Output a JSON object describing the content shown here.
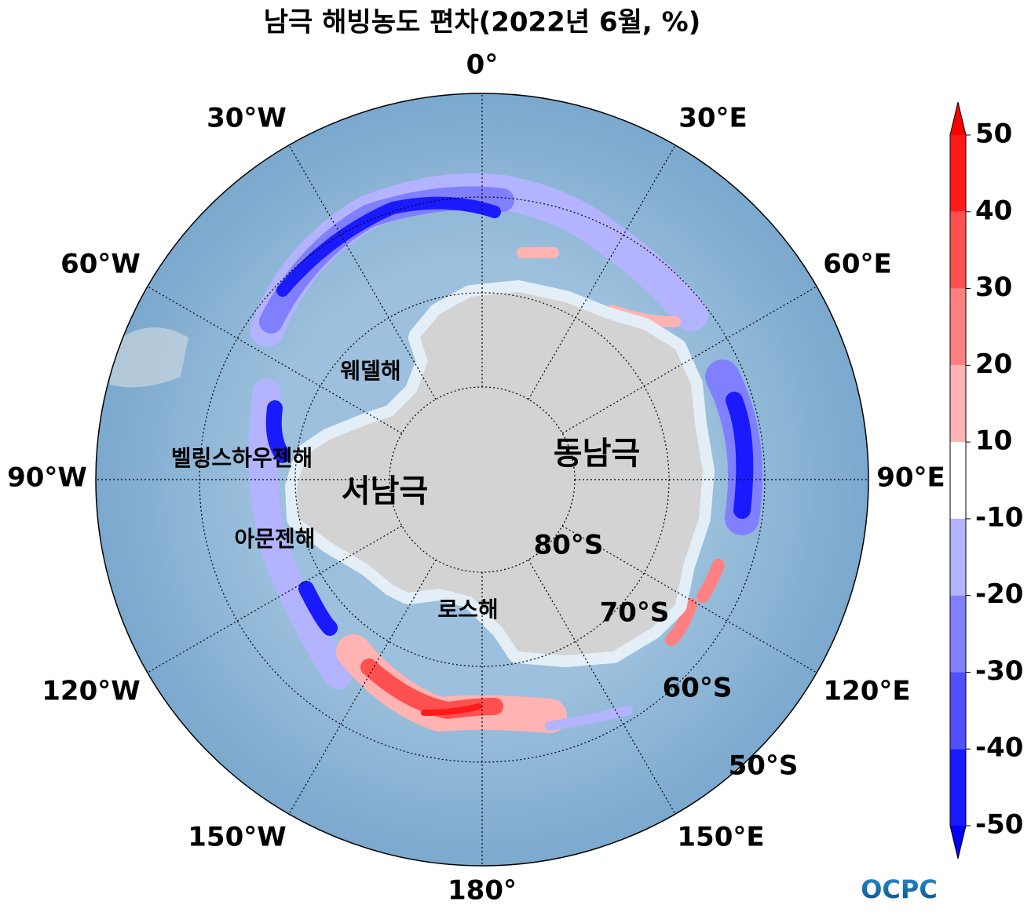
{
  "title": "남극 해빙농도 편차(2022년 6월, %)",
  "map": {
    "projection": "south-polar-stereographic",
    "grid": true,
    "longitude_labels": [
      "0°",
      "30°E",
      "60°E",
      "90°E",
      "120°E",
      "150°E",
      "180°",
      "150°W",
      "120°W",
      "90°W",
      "60°W",
      "30°W"
    ],
    "latitude_labels": [
      "80°S",
      "70°S",
      "60°S",
      "50°S"
    ],
    "seas": [
      "웨델해",
      "벨링스하우젠해",
      "아문젠해",
      "로스해"
    ],
    "regions": [
      "서남극",
      "동남극"
    ]
  },
  "colorbar": {
    "ticks": [
      50,
      40,
      30,
      20,
      10,
      -10,
      -20,
      -30,
      -40,
      -50
    ],
    "colors": [
      "#ff1a1a",
      "#ff5050",
      "#ff8080",
      "#ffb3b3",
      "#ffffff",
      "#b3b3ff",
      "#8080ff",
      "#5050ff",
      "#1a1aff"
    ],
    "extend_colors": [
      "#ff0000",
      "#0000ff"
    ]
  },
  "logo": "OCPC"
}
